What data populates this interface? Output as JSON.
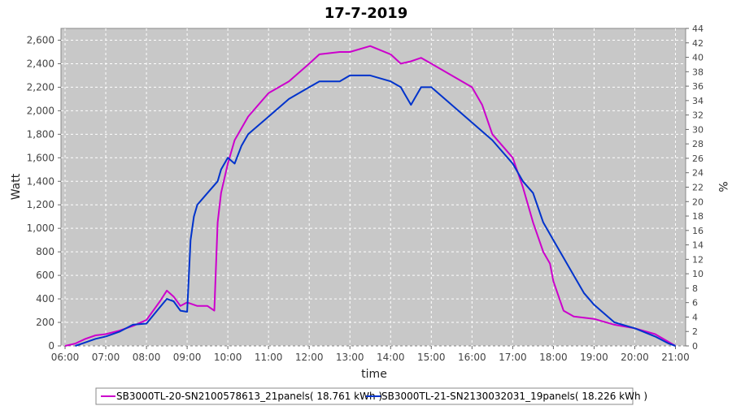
{
  "chart_data": {
    "type": "line",
    "title": "17-7-2019",
    "xlabel": "time",
    "ylabel": "Watt",
    "y2label": "%",
    "x_ticks": [
      "06:00",
      "07:00",
      "08:00",
      "09:00",
      "10:00",
      "11:00",
      "12:00",
      "13:00",
      "14:00",
      "15:00",
      "16:00",
      "17:00",
      "18:00",
      "19:00",
      "20:00",
      "21:00"
    ],
    "xlim_hours": [
      5.9,
      21.25
    ],
    "ylim": [
      0,
      2700
    ],
    "y_ticks": [
      0,
      200,
      400,
      600,
      800,
      1000,
      1200,
      1400,
      1600,
      1800,
      2000,
      2200,
      2400,
      2600
    ],
    "y2lim": [
      0,
      44
    ],
    "y2_ticks": [
      0,
      2,
      4,
      6,
      8,
      10,
      12,
      14,
      16,
      18,
      20,
      22,
      24,
      26,
      28,
      30,
      32,
      34,
      36,
      38,
      40,
      42,
      44
    ],
    "grid": true,
    "legend_position": "bottom",
    "colors": {
      "plot_bg": "#c8c8c8",
      "grid": "#ffffff",
      "series1": "#cc00cc",
      "series2": "#0033cc"
    },
    "series": [
      {
        "name": "SB3000TL-20-SN2100578613_21panels( 18.761 kWh )",
        "color": "#cc00cc",
        "x": [
          "06:00",
          "06:15",
          "06:30",
          "06:45",
          "07:00",
          "07:20",
          "07:40",
          "08:00",
          "08:20",
          "08:30",
          "08:40",
          "08:50",
          "09:00",
          "09:15",
          "09:30",
          "09:40",
          "09:45",
          "09:50",
          "10:00",
          "10:10",
          "10:30",
          "11:00",
          "11:30",
          "12:00",
          "12:15",
          "12:45",
          "13:00",
          "13:30",
          "14:00",
          "14:15",
          "14:30",
          "14:45",
          "15:00",
          "15:30",
          "16:00",
          "16:15",
          "16:30",
          "16:45",
          "17:00",
          "17:15",
          "17:30",
          "17:45",
          "17:55",
          "18:00",
          "18:15",
          "18:30",
          "18:45",
          "19:00",
          "19:30",
          "20:00",
          "20:30",
          "20:45",
          "21:00"
        ],
        "y": [
          0,
          20,
          60,
          90,
          100,
          130,
          170,
          220,
          380,
          470,
          420,
          340,
          370,
          340,
          340,
          300,
          1050,
          1300,
          1550,
          1750,
          1950,
          2150,
          2250,
          2400,
          2480,
          2500,
          2500,
          2550,
          2480,
          2400,
          2420,
          2450,
          2400,
          2300,
          2200,
          2050,
          1800,
          1700,
          1600,
          1350,
          1050,
          800,
          700,
          550,
          300,
          250,
          240,
          230,
          180,
          150,
          100,
          50,
          0
        ]
      },
      {
        "name": "SB3000TL-21-SN2130032031_19panels( 18.226 kWh )",
        "color": "#0033cc",
        "x": [
          "06:15",
          "06:30",
          "06:45",
          "07:00",
          "07:20",
          "07:40",
          "08:00",
          "08:20",
          "08:30",
          "08:40",
          "08:50",
          "09:00",
          "09:05",
          "09:10",
          "09:15",
          "09:30",
          "09:45",
          "09:50",
          "10:00",
          "10:10",
          "10:20",
          "10:30",
          "11:00",
          "11:30",
          "12:00",
          "12:15",
          "12:45",
          "13:00",
          "13:30",
          "14:00",
          "14:15",
          "14:20",
          "14:30",
          "14:45",
          "15:00",
          "15:30",
          "16:00",
          "16:30",
          "17:00",
          "17:15",
          "17:30",
          "17:45",
          "18:00",
          "18:30",
          "18:45",
          "19:00",
          "19:30",
          "20:00",
          "20:30",
          "20:50",
          "21:00"
        ],
        "y": [
          0,
          30,
          60,
          80,
          120,
          180,
          190,
          330,
          400,
          380,
          300,
          290,
          900,
          1100,
          1200,
          1300,
          1400,
          1500,
          1600,
          1550,
          1700,
          1800,
          1950,
          2100,
          2200,
          2250,
          2250,
          2300,
          2300,
          2250,
          2200,
          2150,
          2050,
          2200,
          2200,
          2050,
          1900,
          1750,
          1550,
          1400,
          1300,
          1050,
          900,
          600,
          450,
          350,
          200,
          150,
          80,
          20,
          0
        ]
      }
    ]
  }
}
